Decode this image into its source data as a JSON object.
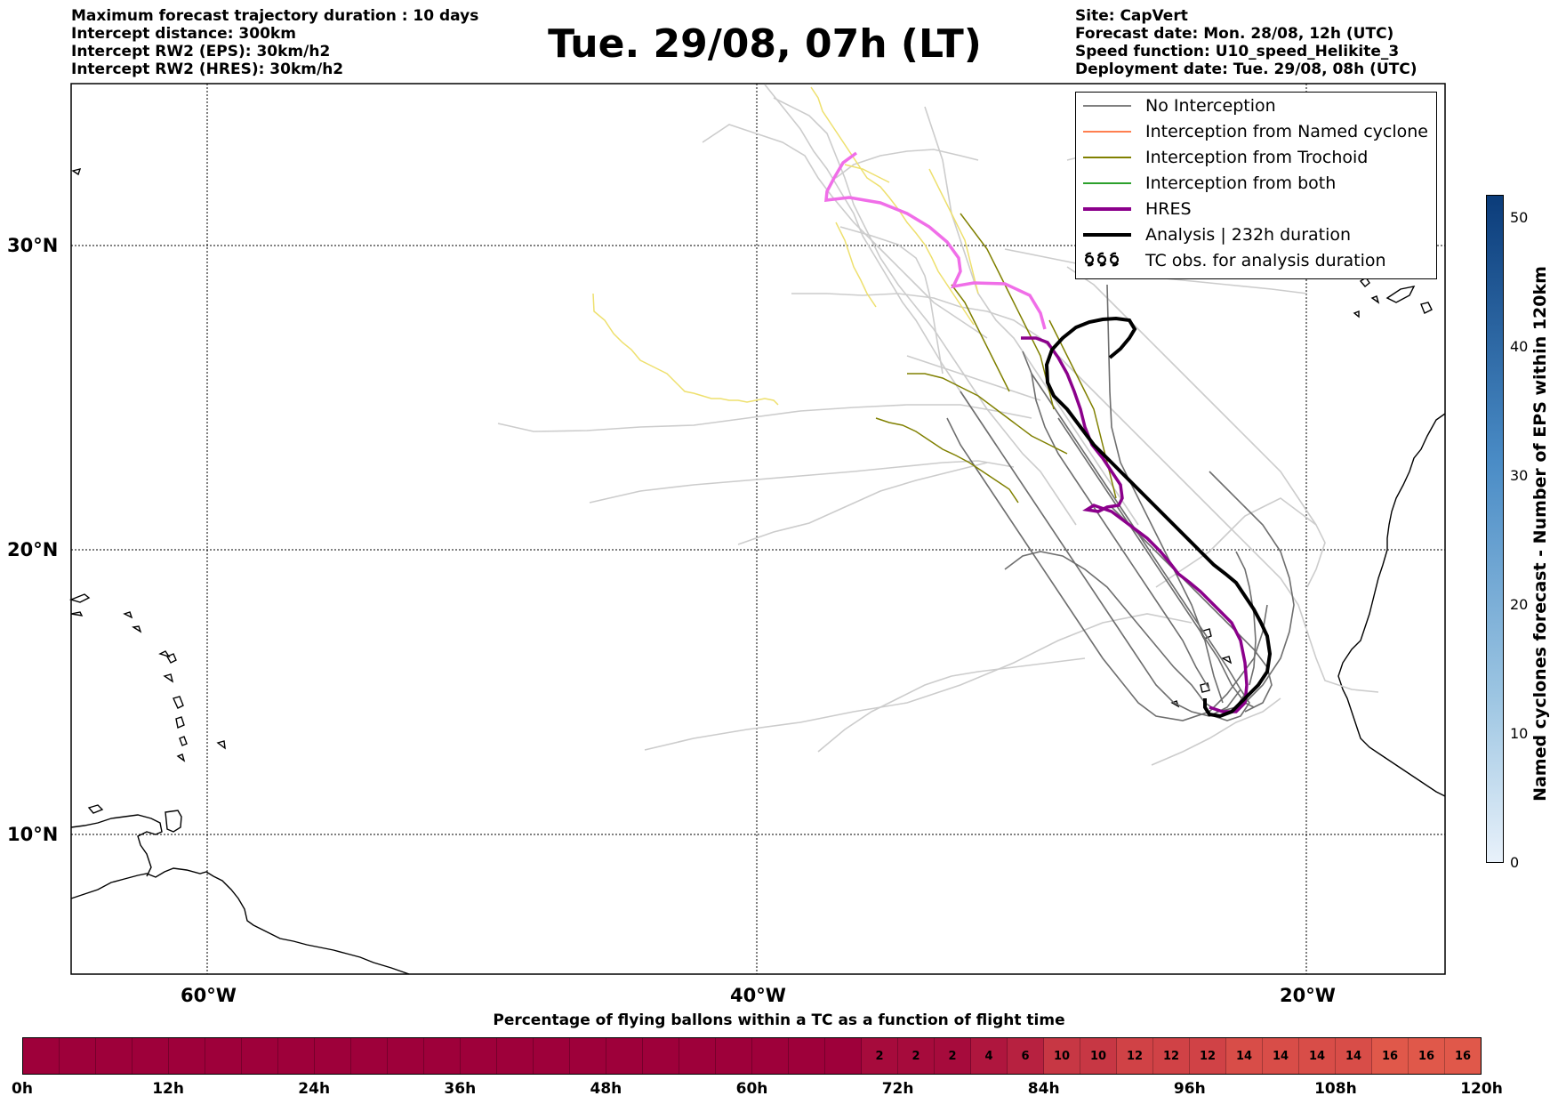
{
  "header_left": [
    "Maximum forecast trajectory duration : 10 days",
    "Intercept distance: 300km",
    "Intercept RW2 (EPS):  30km/h2",
    "Intercept RW2 (HRES): 30km/h2"
  ],
  "title": "Tue. 29/08, 07h (LT)",
  "header_right": [
    "Site: CapVert",
    "Forecast date: Mon. 28/08, 12h (UTC)",
    "Speed function: U10_speed_Helikite_3",
    "Deployment date: Tue. 29/08, 08h (UTC)"
  ],
  "map": {
    "lat_labels": [
      "30°N",
      "20°N",
      "10°N"
    ],
    "lon_labels": [
      "60°W",
      "40°W",
      "20°W"
    ]
  },
  "legend": {
    "items": [
      {
        "label": "No Interception",
        "color": "#808080",
        "icon": "line"
      },
      {
        "label": "Interception from Named cyclone",
        "color": "#ff7f50",
        "icon": "line"
      },
      {
        "label": "Interception from Trochoid",
        "color": "#808000",
        "icon": "line"
      },
      {
        "label": "Interception from both",
        "color": "#2ca02c",
        "icon": "line"
      },
      {
        "label": "HRES",
        "color": "#8b008b",
        "icon": "thick-line"
      },
      {
        "label": "Analysis | 232h duration",
        "color": "#000000",
        "icon": "thick-line"
      },
      {
        "label": "TC obs. for analysis duration",
        "color": "#000000",
        "icon": "tc-symbols"
      }
    ]
  },
  "colorbar_vertical": {
    "label": "Named cyclones forecast - Number of EPS within 120km",
    "ticks": [
      "0",
      "10",
      "20",
      "30",
      "40",
      "50"
    ],
    "color_low": "#e8f1fa",
    "color_high": "#0b3c7a"
  },
  "colorbar_horizontal": {
    "title": "Percentage of flying ballons within a TC as a function of flight time",
    "cells": [
      "",
      "",
      "",
      "",
      "",
      "",
      "",
      "",
      "",
      "",
      "",
      "",
      "",
      "",
      "",
      "",
      "",
      "",
      "",
      "",
      "",
      "",
      "",
      "2",
      "2",
      "2",
      "4",
      "6",
      "10",
      "10",
      "12",
      "12",
      "12",
      "14",
      "14",
      "14",
      "14",
      "16",
      "16",
      "16"
    ],
    "tick_labels": [
      "0h",
      "12h",
      "24h",
      "36h",
      "48h",
      "60h",
      "72h",
      "84h",
      "96h",
      "108h",
      "120h"
    ],
    "color_low": "#9e003a",
    "color_high": "#e0584a"
  }
}
